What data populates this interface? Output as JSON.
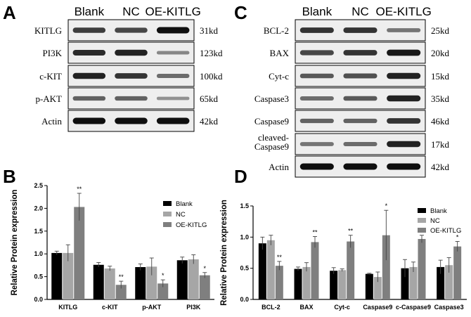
{
  "panel_letters": [
    "A",
    "B",
    "C",
    "D"
  ],
  "blot_A": {
    "lanes": [
      "Blank",
      "NC",
      "OE-KITLG"
    ],
    "rows": [
      {
        "protein": "KITLG",
        "size": "31kd",
        "intensity": [
          0.75,
          0.7,
          1.0
        ]
      },
      {
        "protein": "PI3K",
        "size": "123kd",
        "intensity": [
          0.85,
          0.9,
          0.35
        ]
      },
      {
        "protein": "c-KIT",
        "size": "100kd",
        "intensity": [
          0.9,
          0.8,
          0.5
        ]
      },
      {
        "protein": "p-AKT",
        "size": "65kd",
        "intensity": [
          0.55,
          0.55,
          0.3
        ]
      },
      {
        "protein": "Actin",
        "size": "42kd",
        "intensity": [
          1.0,
          1.0,
          1.0
        ]
      }
    ]
  },
  "blot_C": {
    "lanes": [
      "Blank",
      "NC",
      "OE-KITLG"
    ],
    "rows": [
      {
        "protein": "BCL-2",
        "size": "25kd",
        "intensity": [
          0.8,
          0.8,
          0.45
        ]
      },
      {
        "protein": "BAX",
        "size": "20kd",
        "intensity": [
          0.7,
          0.8,
          0.95
        ]
      },
      {
        "protein": "Cyt-c",
        "size": "15kd",
        "intensity": [
          0.6,
          0.65,
          0.9
        ]
      },
      {
        "protein": "Caspase3",
        "size": "35kd",
        "intensity": [
          0.5,
          0.6,
          0.9
        ]
      },
      {
        "protein": "Caspase9",
        "size": "46kd",
        "intensity": [
          0.55,
          0.55,
          0.8
        ]
      },
      {
        "protein": "cleaved-Caspase9",
        "size": "17kd",
        "intensity": [
          0.45,
          0.5,
          0.9
        ]
      },
      {
        "protein": "Actin",
        "size": "42kd",
        "intensity": [
          1.0,
          1.0,
          1.0
        ]
      }
    ]
  },
  "chart_data": [
    {
      "type": "bar",
      "panel": "B",
      "categories": [
        "KITLG",
        "c-KIT",
        "p-AKT",
        "PI3K"
      ],
      "series": [
        {
          "name": "Blank",
          "color": "#000000",
          "values": [
            1.02,
            0.76,
            0.71,
            0.86
          ],
          "errors": [
            0.04,
            0.05,
            0.07,
            0.07
          ]
        },
        {
          "name": "NC",
          "color": "#a6a6a6",
          "values": [
            1.02,
            0.68,
            0.72,
            0.88
          ],
          "errors": [
            0.18,
            0.05,
            0.19,
            0.1
          ]
        },
        {
          "name": "OE-KITLG",
          "color": "#7f7f7f",
          "values": [
            2.03,
            0.32,
            0.35,
            0.53
          ],
          "errors": [
            0.3,
            0.08,
            0.08,
            0.06
          ]
        }
      ],
      "significance": [
        "**",
        "**",
        "*",
        "*"
      ],
      "ylabel": "Relative Protein expression",
      "ylim": [
        0,
        2.5
      ],
      "yticks": [
        "0.0",
        "0.5",
        "1.0",
        "1.5",
        "2.0",
        "2.5"
      ],
      "legend_position": "top-right",
      "grid": false
    },
    {
      "type": "bar",
      "panel": "D",
      "categories": [
        "BCL-2",
        "BAX",
        "Cyt-c",
        "Caspase9",
        "c-Caspase9",
        "Caspase3"
      ],
      "series": [
        {
          "name": "Blank",
          "color": "#000000",
          "values": [
            0.9,
            0.49,
            0.46,
            0.41,
            0.5,
            0.52
          ],
          "errors": [
            0.1,
            0.03,
            0.05,
            0.01,
            0.14,
            0.11
          ]
        },
        {
          "name": "NC",
          "color": "#a6a6a6",
          "values": [
            0.95,
            0.52,
            0.47,
            0.36,
            0.52,
            0.55
          ],
          "errors": [
            0.08,
            0.07,
            0.02,
            0.08,
            0.08,
            0.12
          ]
        },
        {
          "name": "OE-KITLG",
          "color": "#7f7f7f",
          "values": [
            0.54,
            0.92,
            0.93,
            1.03,
            0.97,
            0.85
          ],
          "errors": [
            0.07,
            0.09,
            0.1,
            0.4,
            0.06,
            0.08
          ]
        }
      ],
      "significance": [
        "**",
        "**",
        "**",
        "*",
        "**",
        "*"
      ],
      "ylabel": "Relative Protein expression",
      "ylim": [
        0,
        1.5
      ],
      "yticks": [
        "0.0",
        "0.5",
        "1.0",
        "1.5"
      ],
      "legend_position": "top-right",
      "grid": false
    }
  ]
}
